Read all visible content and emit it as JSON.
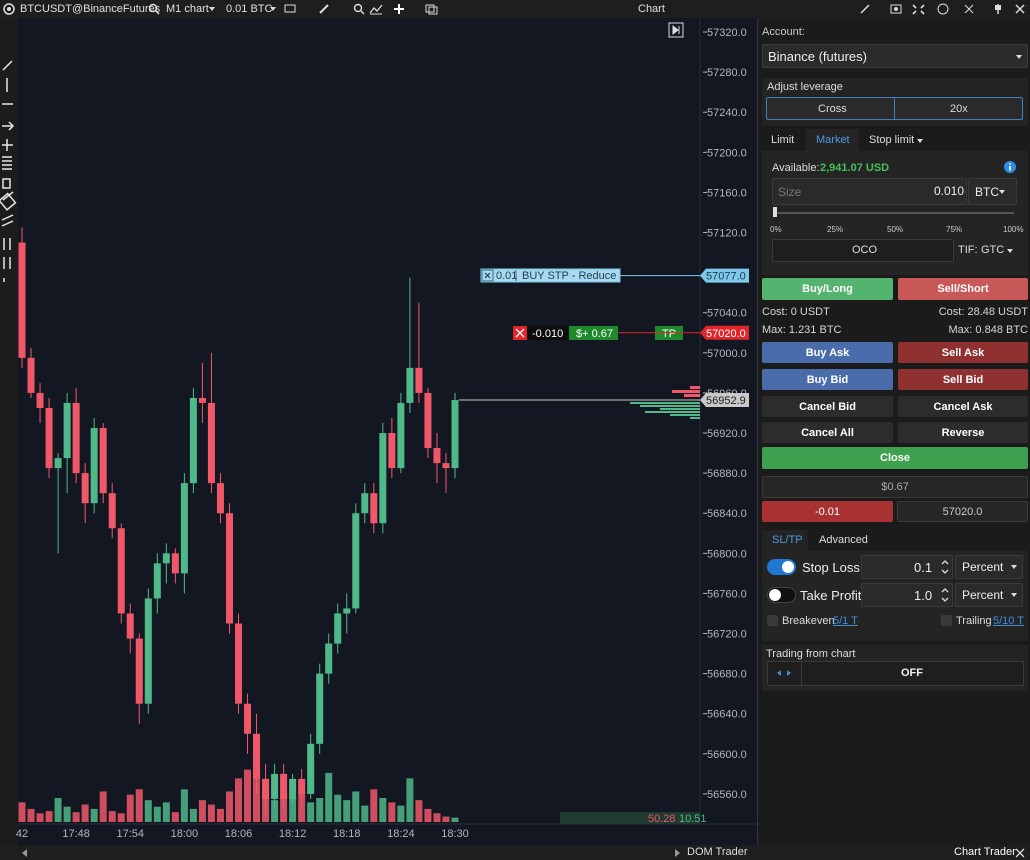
{
  "toolbar": {
    "symbol": "BTCUSDT@BinanceFutures",
    "timeframe": "M1 chart",
    "quantity": "0.01 BTC",
    "title": "Chart"
  },
  "chart_data": {
    "type": "candlestick",
    "categories": [
      "42",
      null,
      null,
      null,
      null,
      null,
      "17:48",
      null,
      null,
      null,
      null,
      null,
      "17:54",
      null,
      null,
      null,
      null,
      null,
      "18:00",
      null,
      null,
      null,
      null,
      null,
      "18:06",
      null,
      null,
      null,
      null,
      null,
      "18:12",
      null,
      null,
      null,
      null,
      null,
      "18:18",
      null,
      null,
      null,
      null,
      null,
      "18:24",
      null,
      null,
      null,
      null,
      null,
      "18:30"
    ],
    "open": [
      57110,
      56995,
      56960,
      56945,
      56885,
      56895,
      56950,
      56880,
      56850,
      56925,
      56860,
      56825,
      56740,
      56715,
      56650,
      56755,
      56790,
      56800,
      56780,
      56870,
      56955,
      56950,
      56870,
      56840,
      56730,
      56650,
      56620,
      56575,
      56555,
      56580,
      56555,
      56575,
      56560,
      56610,
      56680,
      56710,
      56740,
      56745,
      56840,
      56860,
      56830,
      56920,
      56885,
      56950,
      56985,
      56960,
      56905,
      56890,
      56885
    ],
    "high": [
      57125,
      57005,
      56970,
      56955,
      56900,
      56960,
      56965,
      56890,
      56935,
      56930,
      56870,
      56830,
      56750,
      56720,
      56765,
      56800,
      56810,
      56805,
      56880,
      56965,
      56990,
      57000,
      56880,
      56850,
      56740,
      56660,
      56640,
      56590,
      56590,
      56590,
      56580,
      56585,
      56620,
      56690,
      56720,
      56750,
      56760,
      56850,
      56870,
      56870,
      56930,
      56935,
      56960,
      57075,
      57050,
      56965,
      56920,
      56900,
      56960
    ],
    "low": [
      56985,
      56955,
      56930,
      56875,
      56800,
      56860,
      56870,
      56830,
      56840,
      56850,
      56815,
      56730,
      56700,
      56630,
      56640,
      56740,
      56770,
      56770,
      56760,
      56860,
      56930,
      56860,
      56830,
      56720,
      56640,
      56600,
      56560,
      56540,
      56545,
      56545,
      56550,
      56545,
      56555,
      56600,
      56670,
      56700,
      56720,
      56740,
      56830,
      56820,
      56820,
      56875,
      56880,
      56940,
      56950,
      56895,
      56870,
      56860,
      56875
    ],
    "close": [
      56995,
      56960,
      56945,
      56885,
      56895,
      56950,
      56880,
      56850,
      56925,
      56860,
      56825,
      56740,
      56715,
      56650,
      56755,
      56790,
      56800,
      56780,
      56870,
      56955,
      56950,
      56870,
      56840,
      56730,
      56650,
      56620,
      56575,
      56555,
      56580,
      56555,
      56575,
      56560,
      56610,
      56680,
      56710,
      56740,
      56745,
      56840,
      56860,
      56830,
      56920,
      56885,
      56950,
      56985,
      56960,
      56905,
      56890,
      56885,
      56952.9
    ],
    "volume": [
      18,
      12,
      8,
      10,
      22,
      14,
      9,
      16,
      12,
      28,
      10,
      8,
      25,
      30,
      20,
      14,
      18,
      9,
      30,
      12,
      20,
      16,
      12,
      28,
      40,
      48,
      45,
      35,
      20,
      25,
      22,
      30,
      18,
      22,
      45,
      25,
      20,
      28,
      15,
      30,
      22,
      18,
      15,
      40,
      20,
      12,
      8,
      5,
      4
    ],
    "volume_ylim": [
      0,
      55
    ],
    "up_color": "#4fb98a",
    "down_color": "#f0586a",
    "ylim": [
      56530,
      57330
    ],
    "yticks": [
      {
        "value": 56560,
        "label": "56560.0"
      },
      {
        "value": 56600,
        "label": "56600.0"
      },
      {
        "value": 56640,
        "label": "56640.0"
      },
      {
        "value": 56680,
        "label": "56680.0"
      },
      {
        "value": 56720,
        "label": "56720.0"
      },
      {
        "value": 56760,
        "label": "56760.0"
      },
      {
        "value": 56800,
        "label": "56800.0"
      },
      {
        "value": 56840,
        "label": "56840.0"
      },
      {
        "value": 56880,
        "label": "56880.0"
      },
      {
        "value": 56920,
        "label": "56920.0"
      },
      {
        "value": 56960,
        "label": "56960.0"
      },
      {
        "value": 57000,
        "label": "57000.0"
      },
      {
        "value": 57040,
        "label": "57040.0"
      },
      {
        "value": 57080,
        "label": "57080.0"
      },
      {
        "value": 57120,
        "label": "57120.0"
      },
      {
        "value": 57160,
        "label": "57160.0"
      },
      {
        "value": 57200,
        "label": "57200.0"
      },
      {
        "value": 57240,
        "label": "57240.0"
      },
      {
        "value": 57280,
        "label": "57280.0"
      },
      {
        "value": 57320,
        "label": "57320.0"
      }
    ],
    "volume_labels": [
      "50.28",
      "10.51"
    ],
    "order_lines": {
      "values": [
        57077,
        57020,
        56952.9
      ],
      "value_labels": [
        "57077.0",
        "57020.0",
        "56952.9"
      ],
      "colors": [
        "#7ec8ea",
        "#e0252b",
        "#c8c8c8"
      ]
    },
    "orders": {
      "buy_stop_quantity": "0.01",
      "buy_stop_label": "BUY STP - Reduce",
      "position_size": "-0.010",
      "position_pnl": "$+ 0.67",
      "take_profit": "TP"
    }
  },
  "panel": {
    "account_label": "Account:",
    "account": "Binance (futures)",
    "leverage_label": "Adjust leverage",
    "margin_mode": "Cross",
    "leverage": "20x",
    "order_tabs": [
      "Limit",
      "Market",
      "Stop limit"
    ],
    "available_label": "Available:",
    "available": "2,941.07 USD",
    "size_label": "Size",
    "size": "0.010",
    "size_unit": "BTC",
    "slider_marks": [
      "0%",
      "25%",
      "50%",
      "75%",
      "100%"
    ],
    "oco": "OCO",
    "tif_label": "TIF:",
    "tif": "GTC",
    "buy": "Buy/Long",
    "sell": "Sell/Short",
    "buy_cost": "Cost: 0 USDT",
    "sell_cost": "Cost: 28.48 USDT",
    "buy_max": "Max: 1.231 BTC",
    "sell_max": "Max: 0.848 BTC",
    "buttons": [
      "Buy Ask",
      "Sell Ask",
      "Buy Bid",
      "Sell Bid",
      "Cancel Bid",
      "Cancel Ask",
      "Cancel All",
      "Reverse"
    ],
    "close": "Close",
    "pnl": "$0.67",
    "position_qty": "-0.01",
    "position_price": "57020.0",
    "protect_tabs": [
      "SL/TP",
      "Advanced"
    ],
    "stop_loss": {
      "label": "Stop Loss",
      "value": "0.1",
      "unit": "Percent"
    },
    "take_profit": {
      "label": "Take Profit",
      "value": "1.0",
      "unit": "Percent"
    },
    "breakeven": {
      "label": "Breakeven",
      "setting": "5/1 T"
    },
    "trailing": {
      "label": "Trailing",
      "setting": "5/10 T"
    },
    "chart_trading_label": "Trading from chart",
    "chart_trading": "OFF"
  },
  "footer": {
    "dom_trader": "DOM Trader",
    "chart_trader": "Chart Trader"
  }
}
